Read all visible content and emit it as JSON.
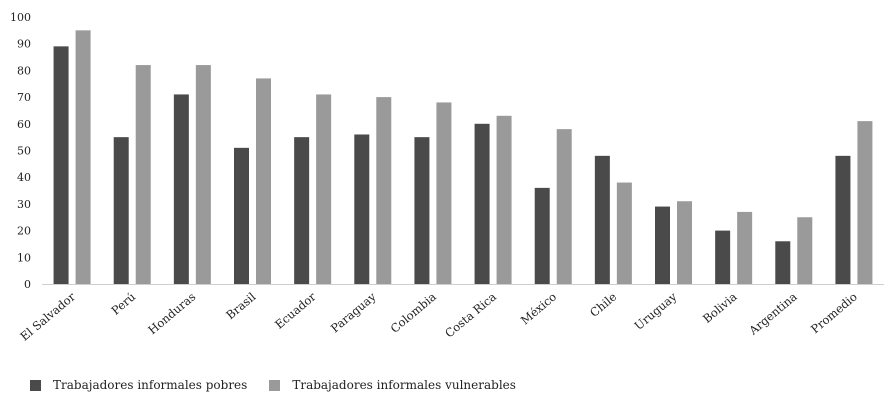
{
  "chart_data": {
    "type": "bar",
    "categories": [
      "El Salvador",
      "Perú",
      "Honduras",
      "Brasil",
      "Ecuador",
      "Paraguay",
      "Colombia",
      "Costa Rica",
      "México",
      "Chile",
      "Uruguay",
      "Bolivia",
      "Argentina",
      "Promedio"
    ],
    "series": [
      {
        "name": "Trabajadores informales pobres",
        "color": "#4a4a4a",
        "values": [
          89,
          55,
          71,
          51,
          55,
          56,
          55,
          60,
          36,
          48,
          29,
          20,
          16,
          48
        ]
      },
      {
        "name": "Trabajadores informales vulnerables",
        "color": "#9a9a9a",
        "values": [
          95,
          82,
          82,
          77,
          71,
          70,
          68,
          63,
          58,
          38,
          31,
          27,
          25,
          61
        ]
      }
    ],
    "yticks": [
      "0",
      "10",
      "20",
      "30",
      "40",
      "50",
      "60",
      "70",
      "80",
      "90",
      "100"
    ],
    "ylim": [
      0,
      100
    ],
    "grid": false,
    "legend": "bottom-left"
  }
}
